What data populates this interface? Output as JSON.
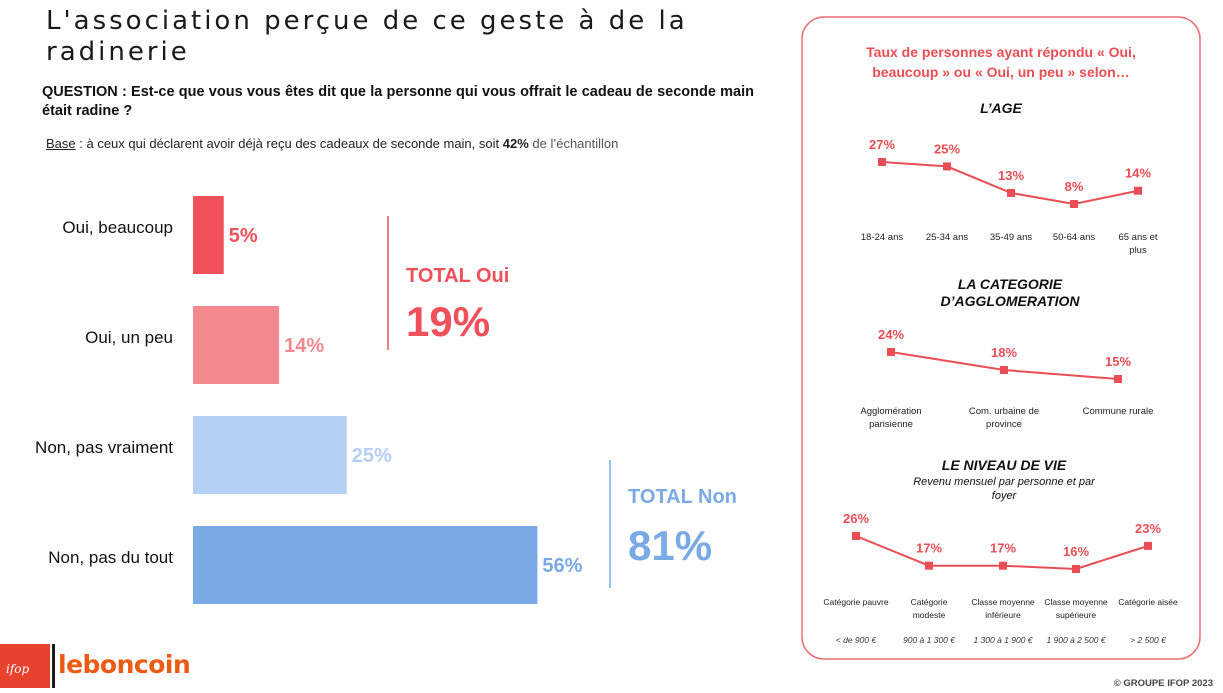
{
  "header": {
    "title": "L'association perçue de ce geste à de la radinerie",
    "question": "QUESTION : Est-ce que vous vous êtes dit que la personne qui vous offrait le cadeau de seconde main était radine ?",
    "base_label": "Base",
    "base_text": " : à ceux qui déclarent avoir déjà reçu des cadeaux de seconde main, soit ",
    "base_pct": "42%",
    "base_tail": " de l’échantillon"
  },
  "totals": {
    "yes_label": "TOTAL Oui",
    "yes_value": "19%",
    "no_label": "TOTAL Non",
    "no_value": "81%"
  },
  "colors": {
    "red": "#f0505a",
    "pink": "#f3898e",
    "lightblue": "#b3cff2",
    "blue": "#7aaae6",
    "line": "#e94e55",
    "panel_border": "#ef6d72"
  },
  "chart_data": [
    {
      "type": "bar",
      "orientation": "horizontal",
      "categories": [
        "Oui, beaucoup",
        "Oui, un peu",
        "Non, pas vraiment",
        "Non, pas du tout"
      ],
      "values": [
        5,
        14,
        25,
        56
      ],
      "value_labels": [
        "5%",
        "14%",
        "25%",
        "56%"
      ],
      "unit": "%"
    },
    {
      "type": "line",
      "panel_title": "Taux de personnes ayant répondu « Oui, beaucoup » ou « Oui, un peu » selon…",
      "title": "L’AGE",
      "categories": [
        "18-24 ans",
        "25-34 ans",
        "35-49 ans",
        "50-64 ans",
        "65 ans et plus"
      ],
      "values": [
        27,
        25,
        13,
        8,
        14
      ],
      "value_labels": [
        "27%",
        "25%",
        "13%",
        "8%",
        "14%"
      ]
    },
    {
      "type": "line",
      "title": "LA CATEGORIE D’AGGLOMERATION",
      "categories": [
        "Agglomération parisienne",
        "Com. urbaine de province",
        "Commune rurale"
      ],
      "values": [
        24,
        18,
        15
      ],
      "value_labels": [
        "24%",
        "18%",
        "15%"
      ]
    },
    {
      "type": "line",
      "title": "LE NIVEAU DE VIE",
      "subtitle": "Revenu mensuel par personne et par foyer",
      "categories": [
        "Catégorie pauvre",
        "Catégorie modeste",
        "Classe moyenne inférieure",
        "Classe moyenne supérieure",
        "Catégorie aisée"
      ],
      "income_ranges": [
        "< de 900 €",
        "900 à 1 300 €",
        "1 300 à 1 900 €",
        "1 900 à 2 500 €",
        "> 2 500 €"
      ],
      "values": [
        26,
        17,
        17,
        16,
        23
      ],
      "value_labels": [
        "26%",
        "17%",
        "17%",
        "16%",
        "23%"
      ]
    }
  ],
  "footer": {
    "ifop": "ifop",
    "brand": "leboncoin",
    "copyright": "© GROUPE IFOP 2023"
  }
}
